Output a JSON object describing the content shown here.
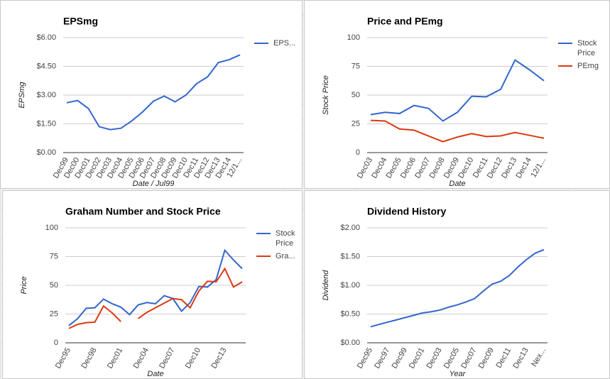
{
  "chart_data": [
    {
      "type": "line",
      "title": "EPSmg",
      "x_label": "Date / Jul99",
      "y_label": "EPSmg",
      "categories": [
        "Dec99",
        "Dec00",
        "Dec01",
        "Dec02",
        "Dec03",
        "Dec04",
        "Dec05",
        "Dec06",
        "Dec07",
        "Dec08",
        "Dec09",
        "Dec10",
        "Dec11",
        "Dec12",
        "Dec13",
        "Dec14",
        "12/1..."
      ],
      "series": [
        {
          "name": "EPS...",
          "color": "#3366cc",
          "values": [
            2.6,
            2.72,
            2.3,
            1.35,
            1.2,
            1.27,
            1.65,
            2.12,
            2.68,
            2.95,
            2.65,
            3.0,
            3.6,
            3.95,
            4.7,
            4.85,
            5.1
          ]
        }
      ],
      "ylim": [
        0,
        6
      ],
      "yticks": [
        {
          "value": 0,
          "label": "$0.00"
        },
        {
          "value": 1.5,
          "label": "$1.50"
        },
        {
          "value": 3,
          "label": "$3.00"
        },
        {
          "value": 4.5,
          "label": "$4.50"
        },
        {
          "value": 6,
          "label": "$6.00"
        }
      ],
      "grid": true,
      "legend": "right"
    },
    {
      "type": "line",
      "title": "Price and PEmg",
      "x_label": "Date",
      "y_label": "Stock Price",
      "categories": [
        "Dec03",
        "Dec04",
        "Dec05",
        "Dec06",
        "Dec07",
        "Dec08",
        "Dec09",
        "Dec10",
        "Dec11",
        "Dec12",
        "Dec13",
        "Dec14",
        "12/1..."
      ],
      "series": [
        {
          "name": "Stock Price",
          "color": "#3366cc",
          "values": [
            33,
            35,
            34,
            41,
            38.5,
            27.5,
            35,
            49,
            48.5,
            55,
            80.5,
            72,
            62.5
          ]
        },
        {
          "name": "PEmg",
          "color": "#dc3912",
          "values": [
            28,
            27.5,
            20.5,
            19.5,
            14.5,
            9.5,
            13.5,
            16.5,
            14,
            14.5,
            17.5,
            15,
            12.5
          ]
        }
      ],
      "ylim": [
        0,
        100
      ],
      "yticks": [
        0,
        25,
        50,
        75,
        100
      ],
      "grid": true,
      "legend": "right"
    },
    {
      "type": "line",
      "title": "Graham Number and Stock Price",
      "x_label": "Date",
      "y_label": "Price",
      "categories": [
        "Dec95",
        null,
        null,
        "Dec98",
        null,
        null,
        "Dec01",
        null,
        null,
        "Dec04",
        null,
        null,
        "Dec07",
        null,
        null,
        "Dec10",
        null,
        null,
        "Dec13",
        null,
        null
      ],
      "series": [
        {
          "name": "Stock Price",
          "color": "#3366cc",
          "values": [
            15,
            21,
            30,
            30.5,
            38,
            34,
            31,
            24.5,
            33,
            35,
            34,
            41,
            38.5,
            27.5,
            35,
            49,
            48.5,
            55,
            80.5,
            72,
            64.5
          ]
        },
        {
          "name": "Gra...",
          "color": "#dc3912",
          "values": [
            12.5,
            16,
            17.5,
            18,
            32,
            26,
            18.5,
            null,
            21,
            26.5,
            30.5,
            34.5,
            38.5,
            37.5,
            30.5,
            45,
            53.5,
            53,
            64.5,
            48.5,
            53
          ]
        }
      ],
      "ylim": [
        0,
        100
      ],
      "yticks": [
        0,
        25,
        50,
        75,
        100
      ],
      "grid": true,
      "legend": "right"
    },
    {
      "type": "line",
      "title": "Dividend History",
      "x_label": "Year",
      "y_label": "Dividend",
      "categories": [
        "Dec95",
        null,
        "Dec97",
        null,
        "Dec99",
        null,
        "Dec01",
        null,
        "Dec03",
        null,
        "Dec05",
        null,
        "Dec07",
        null,
        "Dec09",
        null,
        "Dec11",
        null,
        "Dec13",
        null,
        "Nex..."
      ],
      "series": [
        {
          "color": "#3366cc",
          "values": [
            0.28,
            0.32,
            0.36,
            0.4,
            0.44,
            0.48,
            0.52,
            0.54,
            0.57,
            0.62,
            0.66,
            0.71,
            0.77,
            0.9,
            1.02,
            1.07,
            1.17,
            1.32,
            1.45,
            1.56,
            1.62
          ]
        }
      ],
      "ylim": [
        0,
        2
      ],
      "yticks": [
        {
          "value": 0,
          "label": "$0.00"
        },
        {
          "value": 0.5,
          "label": "$0.50"
        },
        {
          "value": 1,
          "label": "$1.00"
        },
        {
          "value": 1.5,
          "label": "$1.50"
        },
        {
          "value": 2,
          "label": "$2.00"
        }
      ],
      "grid": true
    }
  ]
}
